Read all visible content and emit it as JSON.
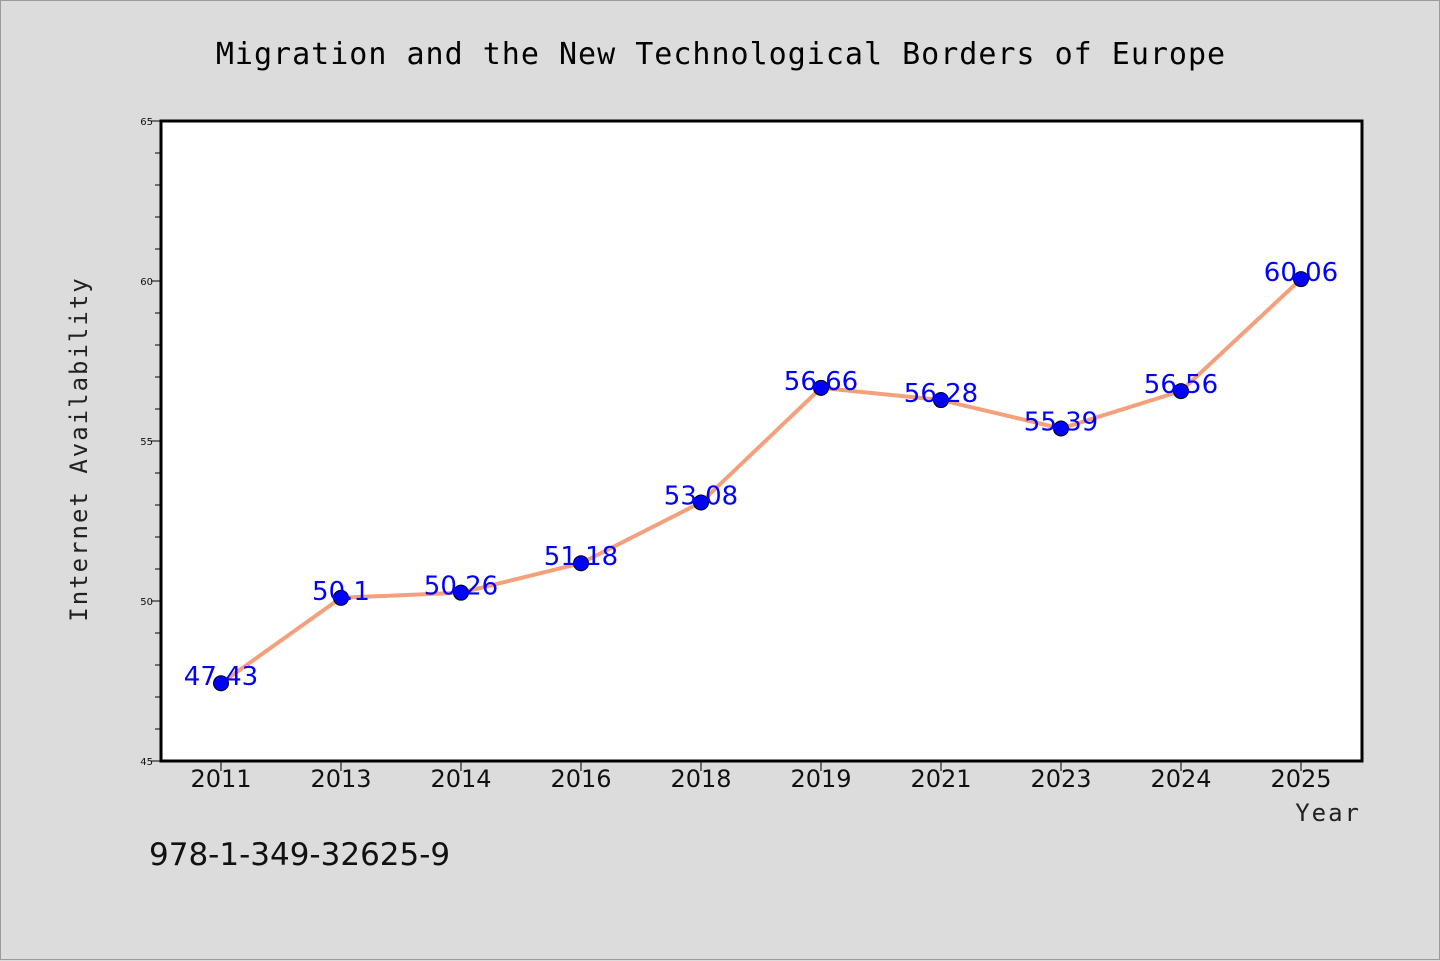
{
  "chart_data": {
    "type": "line",
    "title": "Migration and the New Technological Borders of Europe",
    "xlabel": "Year",
    "ylabel": "Internet Availability",
    "categories": [
      "2011",
      "2013",
      "2014",
      "2016",
      "2018",
      "2019",
      "2021",
      "2023",
      "2024",
      "2025"
    ],
    "series": [
      {
        "values": [
          47.43,
          50.1,
          50.26,
          51.18,
          53.08,
          56.66,
          56.28,
          55.39,
          56.56,
          60.06
        ],
        "labels": [
          "47.43",
          "50.1",
          "50.26",
          "51.18",
          "53.08",
          "56.66",
          "56.28",
          "55.39",
          "56.56",
          "60.06"
        ],
        "line_color": "#f4a07c",
        "marker_color": "#0000ff"
      }
    ],
    "ylim": [
      45,
      65
    ],
    "yticks": [
      "45",
      "50",
      "55",
      "60",
      "65"
    ],
    "grid": false,
    "legend": "none"
  },
  "footer": {
    "isbn": "978-1-349-32625-9"
  },
  "colors": {
    "background": "#dcdcdc",
    "plot_background": "#ffffff",
    "line": "#f4a07c",
    "marker": "#0000ff",
    "data_label": "#0000ff"
  }
}
